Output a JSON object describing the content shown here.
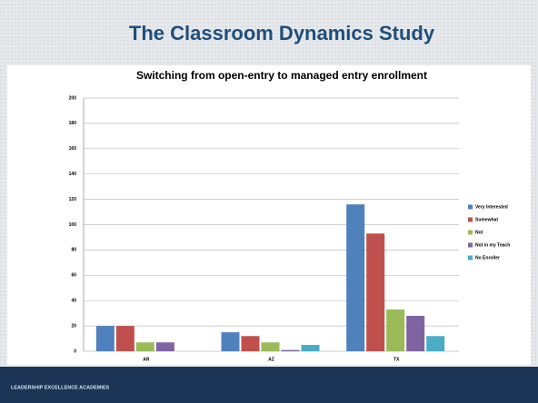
{
  "slide": {
    "title": "The Classroom Dynamics Study",
    "footer": "LEADERSHIP EXCELLENCE ACADEMIES"
  },
  "chart_data": {
    "type": "bar",
    "title": "Switching from open-entry to managed entry enrollment",
    "categories": [
      "AR",
      "AZ",
      "TX"
    ],
    "series": [
      {
        "name": "Very Interested",
        "color": "#4f81bd",
        "values": [
          20,
          15,
          116
        ]
      },
      {
        "name": "Somewhat",
        "color": "#c0504d",
        "values": [
          20,
          12,
          93
        ]
      },
      {
        "name": "Not",
        "color": "#9bbb59",
        "values": [
          7,
          7,
          33
        ]
      },
      {
        "name": "Not in my Teach",
        "color": "#8064a2",
        "values": [
          7,
          1,
          28
        ]
      },
      {
        "name": "No Enroller",
        "color": "#4bacc6",
        "values": [
          0,
          5,
          12
        ]
      }
    ],
    "ylim": [
      0,
      200
    ],
    "yticks": [
      0,
      20,
      40,
      60,
      80,
      100,
      120,
      140,
      160,
      180,
      200
    ],
    "grid": true,
    "legend": "right"
  }
}
